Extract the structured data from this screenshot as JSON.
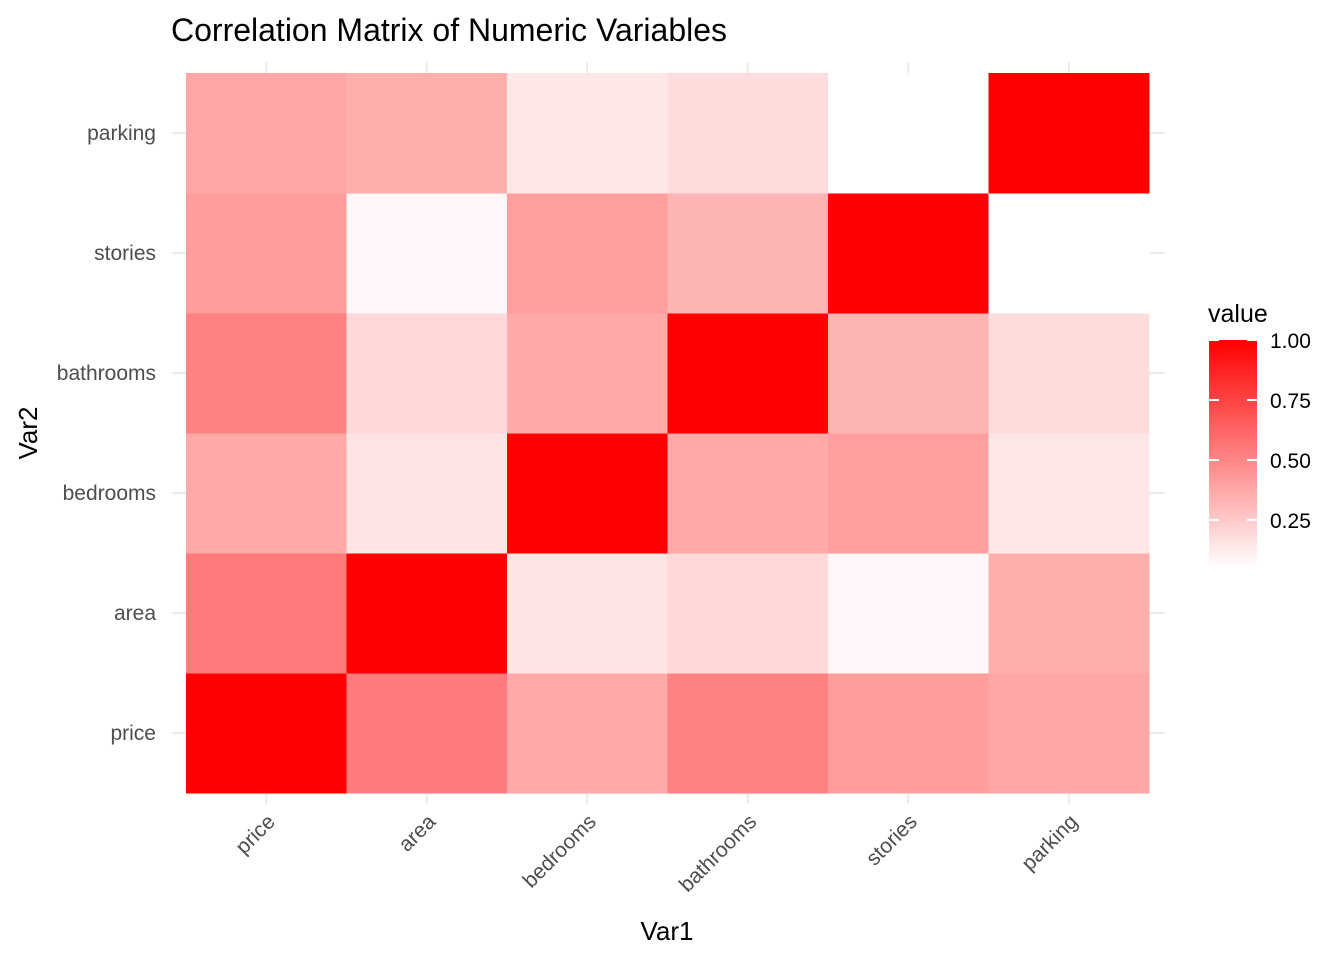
{
  "chart_data": {
    "type": "heatmap",
    "title": "Correlation Matrix of Numeric Variables",
    "xlabel": "Var1",
    "ylabel": "Var2",
    "x_categories": [
      "price",
      "area",
      "bedrooms",
      "bathrooms",
      "stories",
      "parking"
    ],
    "y_categories": [
      "price",
      "area",
      "bedrooms",
      "bathrooms",
      "stories",
      "parking"
    ],
    "values": [
      [
        1.0,
        0.54,
        0.37,
        0.52,
        0.42,
        0.38
      ],
      [
        0.54,
        1.0,
        0.15,
        0.19,
        0.08,
        0.35
      ],
      [
        0.37,
        0.15,
        1.0,
        0.37,
        0.41,
        0.14
      ],
      [
        0.52,
        0.19,
        0.37,
        1.0,
        0.33,
        0.18
      ],
      [
        0.42,
        0.08,
        0.41,
        0.33,
        1.0,
        0.05
      ],
      [
        0.38,
        0.35,
        0.14,
        0.18,
        0.05,
        1.0
      ]
    ],
    "legend": {
      "title": "value",
      "breaks": [
        1.0,
        0.75,
        0.5,
        0.25
      ],
      "labels": [
        "1.00",
        "0.75",
        "0.50",
        "0.25"
      ],
      "range": [
        0.05,
        1.0
      ],
      "low_color": "#ffffff",
      "high_color": "#ff0000"
    }
  }
}
